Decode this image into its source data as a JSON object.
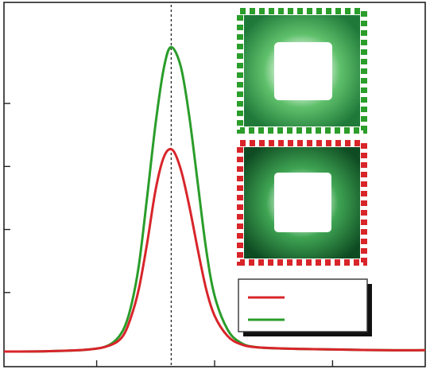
{
  "chart_data": {
    "type": "line",
    "title": "",
    "xlabel": "",
    "ylabel": "",
    "xlim": [
      0,
      10
    ],
    "ylim": [
      0,
      1
    ],
    "grid": false,
    "legend": {
      "placement": "bottom-right",
      "entries": [
        "",
        ""
      ]
    },
    "series": [
      {
        "color": "#2a9d2a",
        "x": [
          0,
          1,
          2,
          2.5,
          2.8,
          3.0,
          3.2,
          3.4,
          3.6,
          3.8,
          3.97,
          4.2,
          4.4,
          4.6,
          4.8,
          5.0,
          5.3,
          5.6,
          6,
          7,
          8,
          9,
          10
        ],
        "y": [
          0.012,
          0.013,
          0.018,
          0.032,
          0.07,
          0.14,
          0.27,
          0.48,
          0.7,
          0.87,
          0.93,
          0.87,
          0.72,
          0.52,
          0.32,
          0.18,
          0.08,
          0.04,
          0.025,
          0.02,
          0.018,
          0.016,
          0.016
        ]
      },
      {
        "color": "#d8252a",
        "x": [
          0,
          1,
          2,
          2.5,
          2.8,
          3.0,
          3.2,
          3.4,
          3.6,
          3.8,
          4.0,
          4.2,
          4.4,
          4.6,
          4.8,
          5.0,
          5.3,
          5.6,
          6,
          7,
          8,
          9,
          10
        ],
        "y": [
          0.012,
          0.013,
          0.018,
          0.03,
          0.055,
          0.11,
          0.2,
          0.34,
          0.5,
          0.6,
          0.62,
          0.56,
          0.45,
          0.32,
          0.2,
          0.12,
          0.06,
          0.035,
          0.025,
          0.02,
          0.018,
          0.016,
          0.016
        ]
      }
    ],
    "vline": {
      "x": 3.97
    },
    "insets": [
      {
        "name": "green-square",
        "frame_color": "#2a9d2a",
        "bg_color": "#1f7a3a"
      },
      {
        "name": "red-square",
        "frame_color": "#d8252a",
        "bg_color": "#0e4a22"
      }
    ]
  }
}
